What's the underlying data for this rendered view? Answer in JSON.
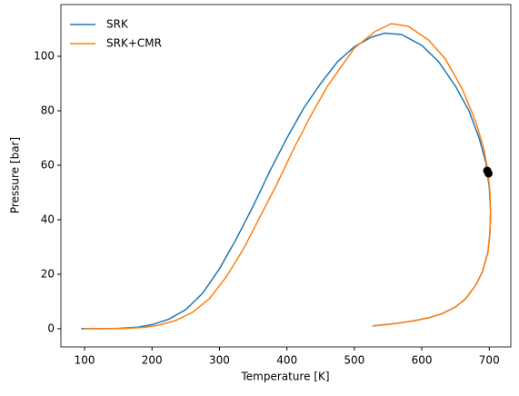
{
  "chart_data": {
    "type": "line",
    "xlabel": "Temperature [K]",
    "ylabel": "Pressure [bar]",
    "xlim": [
      64.9,
      732
    ],
    "ylim": [
      -6.7,
      119
    ],
    "xticks": [
      100,
      200,
      300,
      400,
      500,
      600,
      700
    ],
    "yticks": [
      0,
      20,
      40,
      60,
      80,
      100
    ],
    "legend": "upper left",
    "series": [
      {
        "name": "SRK",
        "color": "#1f77b4",
        "x": [
          95,
          120,
          150,
          180,
          200,
          225,
          250,
          275,
          300,
          325,
          350,
          375,
          400,
          425,
          450,
          475,
          500,
          525,
          545,
          570,
          600,
          625,
          650,
          670,
          685,
          695,
          700,
          702,
          701,
          698,
          690,
          680,
          665,
          650,
          630,
          610,
          590,
          570,
          550,
          527
        ],
        "values": [
          0,
          0,
          0.1,
          0.6,
          1.5,
          3.5,
          7,
          13,
          22,
          33,
          45,
          58,
          70,
          81,
          90,
          98,
          103.5,
          107,
          108.5,
          108,
          104,
          98,
          89,
          80,
          70,
          61,
          52,
          43,
          35,
          28,
          21,
          16,
          11,
          8,
          5.5,
          4,
          3,
          2.2,
          1.6,
          1
        ]
      },
      {
        "name": "SRK+CMR",
        "color": "#ff7f0e",
        "x": [
          100,
          130,
          160,
          190,
          210,
          235,
          260,
          285,
          310,
          335,
          360,
          385,
          410,
          435,
          460,
          480,
          500,
          530,
          555,
          580,
          610,
          635,
          660,
          680,
          692,
          698,
          701,
          702,
          701,
          698,
          690,
          680,
          665,
          650,
          630,
          610,
          590,
          570,
          550,
          527
        ],
        "values": [
          0,
          0,
          0.1,
          0.5,
          1.3,
          3,
          6,
          11,
          19,
          29,
          41,
          53,
          66,
          78,
          89,
          96,
          103,
          109,
          112,
          111,
          106,
          99,
          88,
          76,
          66,
          58,
          50,
          42,
          35,
          28,
          21,
          16,
          11,
          8,
          5.5,
          4,
          3,
          2.2,
          1.6,
          1
        ]
      }
    ],
    "points": {
      "color": "#000000",
      "x": [
        697,
        699
      ],
      "values": [
        58,
        57
      ]
    }
  }
}
